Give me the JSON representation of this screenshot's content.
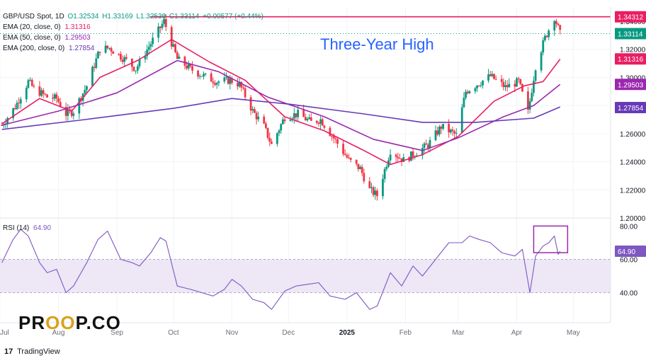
{
  "legend": {
    "symbol": "GBP/USD Spot, 1D",
    "ohlc": {
      "o": "O1.32534",
      "h": "H1.33169",
      "l": "L1.32530",
      "c": "C1.33114",
      "chg": "+0.00577 (+0.44%)"
    },
    "ema20_label": "EMA (20, close, 0)",
    "ema20_value": "1.31316",
    "ema50_label": "EMA (50, close, 0)",
    "ema50_value": "1.29503",
    "ema200_label": "EMA (200, close, 0)",
    "ema200_value": "1.27854"
  },
  "annotation": "Three-Year High",
  "rsi_legend": {
    "label": "RSI (14)",
    "value": "64.90"
  },
  "logo": {
    "left": "PR",
    "mid": "OO",
    "right": "P.CO"
  },
  "footer": {
    "mark": "17",
    "text": "TradingView"
  },
  "colors": {
    "up": "#089981",
    "down": "#f23645",
    "ema20": "#e91e63",
    "ema50": "#9c27b0",
    "ema200": "#673ab7",
    "resistance": "#e91e63",
    "rsi": "#7e57c2",
    "rsi_band": "#ede7f6",
    "annotation": "#2962ff"
  },
  "chart_data": [
    {
      "type": "candlestick",
      "title": "GBP/USD Spot, 1D",
      "x_labels": [
        "Jul",
        "Aug",
        "Sep",
        "Oct",
        "Nov",
        "Dec",
        "2025",
        "Feb",
        "Mar",
        "Apr",
        "May"
      ],
      "y_ticks": [
        "1.20000",
        "1.22000",
        "1.24000",
        "1.26000",
        "1.28000",
        "1.30000",
        "1.32000",
        "1.34000"
      ],
      "ylim": [
        1.2,
        1.345
      ],
      "price_tags": [
        {
          "label": "1.34312",
          "value": 1.34312,
          "color": "#e91e63"
        },
        {
          "label": "1.33114",
          "value": 1.33114,
          "color": "#089981"
        },
        {
          "label": "1.31316",
          "value": 1.31316,
          "color": "#e91e63"
        },
        {
          "label": "1.29503",
          "value": 1.29503,
          "color": "#9c27b0"
        },
        {
          "label": "1.27854",
          "value": 1.27854,
          "color": "#673ab7"
        }
      ],
      "resistance": 1.34312,
      "last_price": 1.33114,
      "price_path": [
        [
          "2024-07-02",
          1.266
        ],
        [
          "2024-07-09",
          1.279
        ],
        [
          "2024-07-16",
          1.297
        ],
        [
          "2024-07-19",
          1.292
        ],
        [
          "2024-07-26",
          1.286
        ],
        [
          "2024-07-31",
          1.285
        ],
        [
          "2024-08-05",
          1.274
        ],
        [
          "2024-08-09",
          1.276
        ],
        [
          "2024-08-16",
          1.294
        ],
        [
          "2024-08-23",
          1.32
        ],
        [
          "2024-08-28",
          1.321
        ],
        [
          "2024-09-06",
          1.312
        ],
        [
          "2024-09-11",
          1.306
        ],
        [
          "2024-09-18",
          1.322
        ],
        [
          "2024-09-26",
          1.34
        ],
        [
          "2024-10-03",
          1.313
        ],
        [
          "2024-10-10",
          1.306
        ],
        [
          "2024-10-17",
          1.301
        ],
        [
          "2024-10-24",
          1.297
        ],
        [
          "2024-10-31",
          1.298
        ],
        [
          "2024-11-05",
          1.295
        ],
        [
          "2024-11-12",
          1.276
        ],
        [
          "2024-11-18",
          1.265
        ],
        [
          "2024-11-22",
          1.252
        ],
        [
          "2024-11-29",
          1.272
        ],
        [
          "2024-12-06",
          1.274
        ],
        [
          "2024-12-13",
          1.268
        ],
        [
          "2024-12-18",
          1.27
        ],
        [
          "2024-12-26",
          1.255
        ],
        [
          "2025-01-02",
          1.241
        ],
        [
          "2025-01-08",
          1.235
        ],
        [
          "2025-01-13",
          1.22
        ],
        [
          "2025-01-17",
          1.216
        ],
        [
          "2025-01-24",
          1.248
        ],
        [
          "2025-01-31",
          1.241
        ],
        [
          "2025-02-06",
          1.246
        ],
        [
          "2025-02-13",
          1.252
        ],
        [
          "2025-02-20",
          1.265
        ],
        [
          "2025-02-28",
          1.259
        ],
        [
          "2025-03-05",
          1.29
        ],
        [
          "2025-03-12",
          1.296
        ],
        [
          "2025-03-18",
          1.301
        ],
        [
          "2025-03-26",
          1.293
        ],
        [
          "2025-04-02",
          1.297
        ],
        [
          "2025-04-07",
          1.275
        ],
        [
          "2025-04-11",
          1.308
        ],
        [
          "2025-04-16",
          1.328
        ],
        [
          "2025-04-21",
          1.343
        ],
        [
          "2025-04-24",
          1.331
        ]
      ],
      "series": [
        {
          "name": "EMA (20, close, 0)",
          "values": [
            [
              "2024-07-02",
              1.267
            ],
            [
              "2024-07-22",
              1.285
            ],
            [
              "2024-08-08",
              1.276
            ],
            [
              "2024-08-23",
              1.3
            ],
            [
              "2024-09-12",
              1.312
            ],
            [
              "2024-09-30",
              1.327
            ],
            [
              "2024-10-20",
              1.311
            ],
            [
              "2024-11-08",
              1.298
            ],
            [
              "2024-11-29",
              1.272
            ],
            [
              "2024-12-20",
              1.262
            ],
            [
              "2025-01-10",
              1.248
            ],
            [
              "2025-01-24",
              1.238
            ],
            [
              "2025-02-10",
              1.245
            ],
            [
              "2025-03-01",
              1.258
            ],
            [
              "2025-03-20",
              1.283
            ],
            [
              "2025-04-05",
              1.294
            ],
            [
              "2025-04-15",
              1.297
            ],
            [
              "2025-04-24",
              1.313
            ]
          ]
        },
        {
          "name": "EMA (50, close, 0)",
          "values": [
            [
              "2024-07-02",
              1.266
            ],
            [
              "2024-08-01",
              1.276
            ],
            [
              "2024-09-01",
              1.289
            ],
            [
              "2024-10-03",
              1.312
            ],
            [
              "2024-10-25",
              1.304
            ],
            [
              "2024-11-20",
              1.286
            ],
            [
              "2024-12-20",
              1.272
            ],
            [
              "2025-01-15",
              1.256
            ],
            [
              "2025-02-10",
              1.248
            ],
            [
              "2025-03-01",
              1.257
            ],
            [
              "2025-03-25",
              1.272
            ],
            [
              "2025-04-10",
              1.28
            ],
            [
              "2025-04-24",
              1.295
            ]
          ]
        },
        {
          "name": "EMA (200, close, 0)",
          "values": [
            [
              "2024-07-02",
              1.263
            ],
            [
              "2024-08-15",
              1.27
            ],
            [
              "2024-10-01",
              1.278
            ],
            [
              "2024-11-01",
              1.285
            ],
            [
              "2024-12-01",
              1.281
            ],
            [
              "2025-01-10",
              1.274
            ],
            [
              "2025-02-10",
              1.268
            ],
            [
              "2025-03-10",
              1.268
            ],
            [
              "2025-04-10",
              1.271
            ],
            [
              "2025-04-24",
              1.279
            ]
          ]
        }
      ]
    },
    {
      "type": "line",
      "title": "RSI (14)",
      "y_ticks": [
        "40.00",
        "60.00",
        "80.00"
      ],
      "ylim": [
        22,
        84
      ],
      "band": [
        40,
        60
      ],
      "last_value": 64.9,
      "series": [
        {
          "name": "RSI (14)",
          "values": [
            [
              "2024-07-02",
              58
            ],
            [
              "2024-07-08",
              72
            ],
            [
              "2024-07-12",
              78
            ],
            [
              "2024-07-16",
              74
            ],
            [
              "2024-07-22",
              58
            ],
            [
              "2024-07-26",
              52
            ],
            [
              "2024-07-31",
              54
            ],
            [
              "2024-08-05",
              40
            ],
            [
              "2024-08-09",
              44
            ],
            [
              "2024-08-16",
              58
            ],
            [
              "2024-08-22",
              72
            ],
            [
              "2024-08-27",
              77
            ],
            [
              "2024-09-03",
              60
            ],
            [
              "2024-09-09",
              58
            ],
            [
              "2024-09-13",
              56
            ],
            [
              "2024-09-19",
              64
            ],
            [
              "2024-09-24",
              73
            ],
            [
              "2024-09-27",
              71
            ],
            [
              "2024-10-03",
              44
            ],
            [
              "2024-10-10",
              42
            ],
            [
              "2024-10-16",
              40
            ],
            [
              "2024-10-22",
              38
            ],
            [
              "2024-10-28",
              42
            ],
            [
              "2024-11-01",
              48
            ],
            [
              "2024-11-06",
              44
            ],
            [
              "2024-11-12",
              36
            ],
            [
              "2024-11-18",
              34
            ],
            [
              "2024-11-22",
              30
            ],
            [
              "2024-11-29",
              41
            ],
            [
              "2024-12-05",
              44
            ],
            [
              "2024-12-11",
              45
            ],
            [
              "2024-12-17",
              46
            ],
            [
              "2024-12-23",
              38
            ],
            [
              "2024-12-31",
              36
            ],
            [
              "2025-01-06",
              40
            ],
            [
              "2025-01-13",
              30
            ],
            [
              "2025-01-17",
              32
            ],
            [
              "2025-01-24",
              52
            ],
            [
              "2025-01-30",
              44
            ],
            [
              "2025-02-05",
              56
            ],
            [
              "2025-02-10",
              50
            ],
            [
              "2025-02-17",
              60
            ],
            [
              "2025-02-24",
              70
            ],
            [
              "2025-03-03",
              70
            ],
            [
              "2025-03-07",
              74
            ],
            [
              "2025-03-12",
              72
            ],
            [
              "2025-03-18",
              70
            ],
            [
              "2025-03-24",
              64
            ],
            [
              "2025-03-31",
              62
            ],
            [
              "2025-04-04",
              66
            ],
            [
              "2025-04-08",
              40
            ],
            [
              "2025-04-11",
              62
            ],
            [
              "2025-04-15",
              68
            ],
            [
              "2025-04-18",
              70
            ],
            [
              "2025-04-21",
              74
            ],
            [
              "2025-04-23",
              63
            ],
            [
              "2025-04-24",
              64.9
            ]
          ]
        }
      ]
    }
  ]
}
